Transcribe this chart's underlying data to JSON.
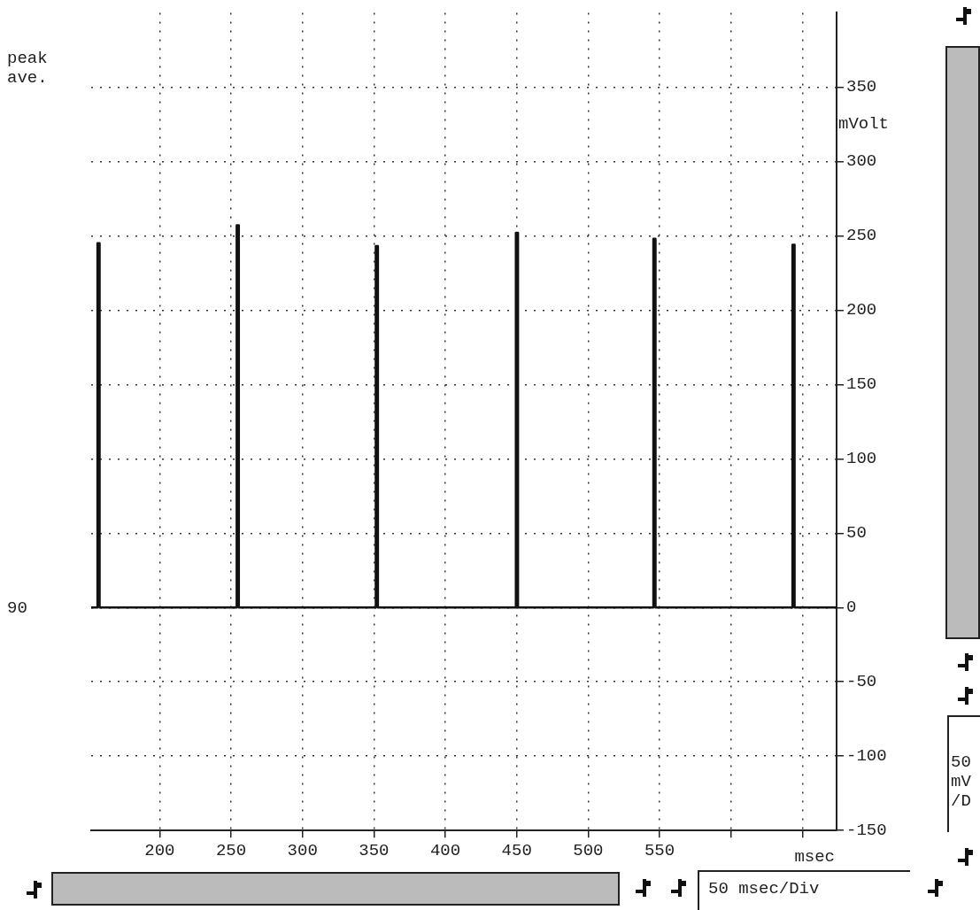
{
  "chart_data": {
    "type": "line",
    "xlabel": "msec",
    "ylabel": "mVolt",
    "annotations": [
      "peak",
      "ave.",
      "90",
      "50 msec/Div",
      "50 mV /D"
    ],
    "x": [
      152,
      156.4,
      156.4,
      157.9,
      157.9,
      253.9,
      253.9,
      255.4,
      255.4,
      351.3,
      351.3,
      352.8,
      352.8,
      449.4,
      449.4,
      450.9,
      450.9,
      545.7,
      545.7,
      547.2,
      547.2,
      643.1,
      643.1,
      644.6,
      644.6,
      674
    ],
    "series": [
      {
        "color": "#111111",
        "values": [
          0,
          0,
          245,
          245,
          0,
          0,
          257,
          257,
          0,
          0,
          243,
          243,
          0,
          0,
          252,
          252,
          0,
          0,
          248,
          248,
          0,
          0,
          244,
          244,
          0,
          0
        ]
      }
    ],
    "xlim": [
      152,
      674
    ],
    "ylim": [
      -150,
      400
    ],
    "xticks": [
      200,
      250,
      300,
      350,
      400,
      450,
      500,
      550,
      {
        "value": 600,
        "label": null
      },
      {
        "value": 650,
        "label": null
      }
    ],
    "yticks": [
      -150,
      -100,
      -50,
      0,
      50,
      100,
      150,
      200,
      250,
      300,
      350
    ],
    "grid": true,
    "legend": false,
    "marker": "none",
    "line_style": "solid"
  }
}
